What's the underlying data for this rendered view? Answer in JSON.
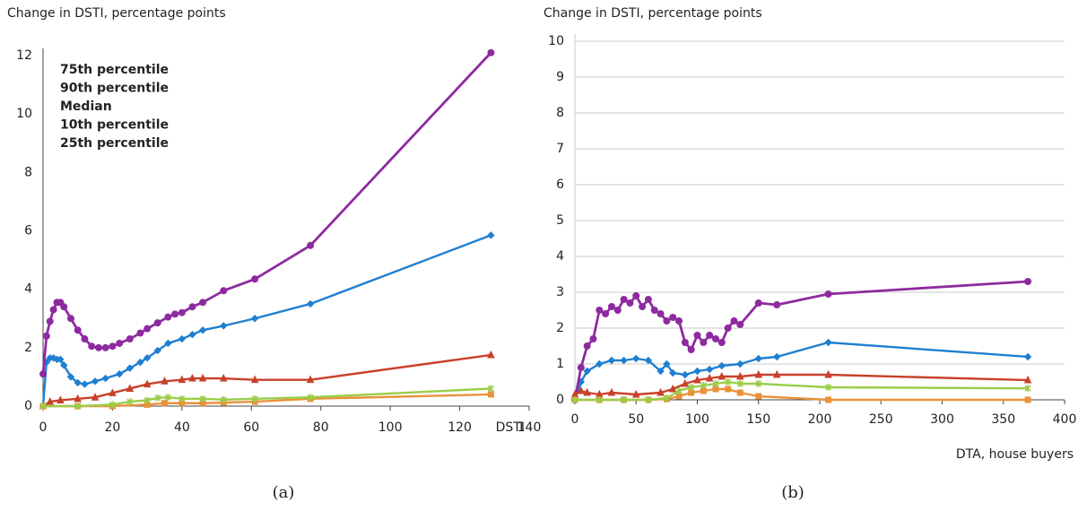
{
  "chart_data": [
    {
      "type": "line",
      "y_title": "Change in DSTI, percentage points",
      "x_label": "DSTI",
      "caption": "(a)",
      "xlim": [
        0,
        140
      ],
      "ylim": [
        0,
        12
      ],
      "xticks": [
        0,
        20,
        40,
        60,
        80,
        100,
        120,
        140
      ],
      "yticks": [
        0,
        2,
        4,
        6,
        8,
        10,
        12
      ],
      "grid": false,
      "legend": "top-left",
      "series": [
        {
          "name": "75th percentile",
          "color": "#1f7fd0",
          "marker": "diamond",
          "x": [
            0,
            1,
            2,
            3,
            4,
            5,
            6,
            8,
            10,
            12,
            15,
            18,
            22,
            25,
            28,
            30,
            33,
            36,
            40,
            43,
            46,
            52,
            61,
            77,
            129
          ],
          "values": [
            0,
            1.5,
            1.65,
            1.65,
            1.6,
            1.6,
            1.4,
            1.0,
            0.8,
            0.75,
            0.85,
            0.95,
            1.1,
            1.3,
            1.5,
            1.65,
            1.9,
            2.15,
            2.3,
            2.45,
            2.6,
            2.75,
            3.0,
            3.5,
            5.85
          ]
        },
        {
          "name": "90th percentile",
          "color": "#8e2aa0",
          "marker": "circle",
          "x": [
            0,
            1,
            2,
            3,
            4,
            5,
            6,
            8,
            10,
            12,
            14,
            16,
            18,
            20,
            22,
            25,
            28,
            30,
            33,
            36,
            38,
            40,
            43,
            46,
            52,
            61,
            77,
            129
          ],
          "values": [
            1.1,
            2.4,
            2.9,
            3.3,
            3.55,
            3.55,
            3.4,
            3.0,
            2.6,
            2.3,
            2.05,
            2.0,
            2.0,
            2.05,
            2.15,
            2.3,
            2.5,
            2.65,
            2.85,
            3.05,
            3.15,
            3.2,
            3.4,
            3.55,
            3.95,
            4.35,
            5.5,
            12.1
          ]
        },
        {
          "name": "Median",
          "color": "#c8402a",
          "marker": "triangle",
          "x": [
            0,
            2,
            5,
            10,
            15,
            20,
            25,
            30,
            35,
            40,
            43,
            46,
            52,
            61,
            77,
            129
          ],
          "values": [
            0,
            0.15,
            0.2,
            0.25,
            0.3,
            0.45,
            0.6,
            0.75,
            0.85,
            0.9,
            0.95,
            0.95,
            0.95,
            0.9,
            0.9,
            1.75
          ]
        },
        {
          "name": "10th percentile",
          "color": "#e8923a",
          "marker": "square",
          "x": [
            0,
            10,
            20,
            30,
            35,
            40,
            46,
            52,
            61,
            77,
            129
          ],
          "values": [
            0,
            0,
            0,
            0.05,
            0.1,
            0.1,
            0.1,
            0.12,
            0.15,
            0.25,
            0.4
          ]
        },
        {
          "name": "25th percentile",
          "color": "#9acd48",
          "marker": "star",
          "x": [
            0,
            10,
            20,
            25,
            30,
            33,
            36,
            40,
            46,
            52,
            61,
            77,
            129
          ],
          "values": [
            0,
            0,
            0.05,
            0.15,
            0.2,
            0.28,
            0.3,
            0.25,
            0.25,
            0.22,
            0.25,
            0.3,
            0.6
          ]
        }
      ]
    },
    {
      "type": "line",
      "y_title": "Change in DSTI, percentage points",
      "x_label": "DTA, house buyers",
      "caption": "(b)",
      "xlim": [
        0,
        400
      ],
      "ylim": [
        0,
        10
      ],
      "xticks": [
        0,
        50,
        100,
        150,
        200,
        250,
        300,
        350,
        400
      ],
      "yticks": [
        0,
        1,
        2,
        3,
        4,
        5,
        6,
        7,
        8,
        9,
        10
      ],
      "grid": true,
      "series": [
        {
          "color": "#1f7fd0",
          "marker": "diamond",
          "x": [
            0,
            5,
            10,
            20,
            30,
            40,
            50,
            60,
            70,
            75,
            80,
            90,
            100,
            110,
            120,
            135,
            150,
            165,
            207,
            370
          ],
          "values": [
            0,
            0.5,
            0.8,
            1.0,
            1.1,
            1.1,
            1.15,
            1.1,
            0.8,
            1.0,
            0.75,
            0.7,
            0.8,
            0.85,
            0.95,
            1.0,
            1.15,
            1.2,
            1.6,
            1.2
          ]
        },
        {
          "color": "#8e2aa0",
          "marker": "circle",
          "x": [
            0,
            5,
            10,
            15,
            20,
            25,
            30,
            35,
            40,
            45,
            50,
            55,
            60,
            65,
            70,
            75,
            80,
            85,
            90,
            95,
            100,
            105,
            110,
            115,
            120,
            125,
            130,
            135,
            150,
            165,
            207,
            370
          ],
          "values": [
            0,
            0.9,
            1.5,
            1.7,
            2.5,
            2.4,
            2.6,
            2.5,
            2.8,
            2.7,
            2.9,
            2.6,
            2.8,
            2.5,
            2.4,
            2.2,
            2.3,
            2.2,
            1.6,
            1.4,
            1.8,
            1.6,
            1.8,
            1.7,
            1.6,
            2.0,
            2.2,
            2.1,
            2.7,
            2.65,
            2.95,
            3.3
          ]
        },
        {
          "color": "#c8402a",
          "marker": "triangle",
          "x": [
            0,
            5,
            10,
            20,
            30,
            50,
            70,
            80,
            90,
            100,
            110,
            120,
            135,
            150,
            165,
            207,
            370
          ],
          "values": [
            0.15,
            0.25,
            0.2,
            0.15,
            0.2,
            0.15,
            0.2,
            0.3,
            0.45,
            0.55,
            0.6,
            0.65,
            0.65,
            0.7,
            0.7,
            0.7,
            0.55
          ]
        },
        {
          "color": "#e8923a",
          "marker": "square",
          "x": [
            0,
            20,
            40,
            60,
            75,
            85,
            95,
            105,
            115,
            125,
            135,
            150,
            207,
            370
          ],
          "values": [
            0,
            0,
            0,
            0,
            0.02,
            0.1,
            0.2,
            0.25,
            0.3,
            0.3,
            0.2,
            0.1,
            0.0,
            0.0
          ]
        },
        {
          "color": "#9acd48",
          "marker": "star",
          "x": [
            0,
            20,
            40,
            60,
            75,
            85,
            95,
            105,
            115,
            125,
            135,
            150,
            207,
            370
          ],
          "values": [
            0,
            0,
            0,
            0,
            0.05,
            0.25,
            0.35,
            0.4,
            0.45,
            0.5,
            0.45,
            0.45,
            0.35,
            0.32
          ]
        }
      ]
    }
  ]
}
